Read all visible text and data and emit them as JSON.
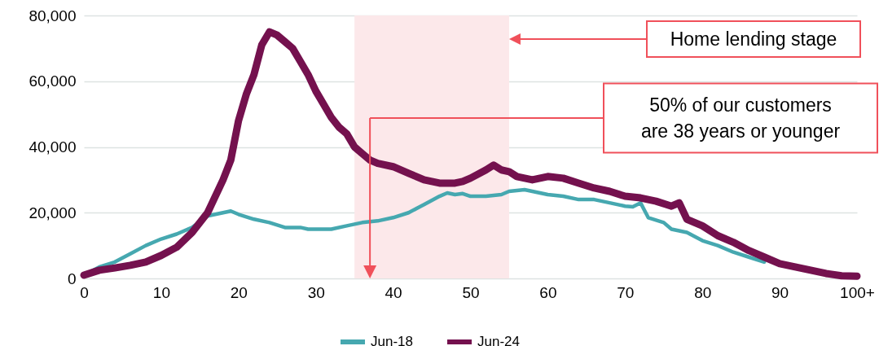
{
  "chart_data": {
    "type": "line",
    "xlim": [
      0,
      100
    ],
    "xticks": [
      0,
      10,
      20,
      30,
      40,
      50,
      60,
      70,
      80,
      90,
      {
        "value": 100,
        "label": "100+"
      }
    ],
    "ylim": [
      0,
      80000
    ],
    "yticks": [
      0,
      {
        "value": 20000,
        "label": "20,000"
      },
      {
        "value": 40000,
        "label": "40,000"
      },
      {
        "value": 60000,
        "label": "60,000"
      },
      {
        "value": 80000,
        "label": "80,000"
      }
    ],
    "grid": "y",
    "legend": "bottom",
    "line_style": "solid",
    "marker": "none",
    "series": [
      {
        "name": "Jun-18",
        "color": "#46a8b0",
        "x": [
          0,
          2,
          4,
          6,
          8,
          10,
          12,
          14,
          16,
          18,
          19,
          20,
          22,
          24,
          26,
          28,
          29,
          32,
          34,
          36,
          38,
          40,
          42,
          44,
          46,
          47,
          48,
          49,
          50,
          52,
          54,
          55,
          57,
          58,
          60,
          62,
          64,
          66,
          68,
          70,
          71,
          72,
          73,
          75,
          76,
          78,
          80,
          82,
          84,
          86,
          88
        ],
        "values": [
          1000,
          3500,
          5000,
          7500,
          10000,
          12000,
          13500,
          15500,
          19000,
          20000,
          20500,
          19500,
          18000,
          17000,
          15500,
          15500,
          15000,
          15000,
          16000,
          17000,
          17500,
          18500,
          20000,
          22500,
          25000,
          26000,
          25500,
          25800,
          25000,
          25000,
          25500,
          26500,
          27000,
          26500,
          25500,
          25000,
          24000,
          24000,
          23000,
          22000,
          21800,
          23000,
          18500,
          17000,
          15000,
          14000,
          11500,
          10000,
          8000,
          6500,
          5000
        ]
      },
      {
        "name": "Jun-24",
        "color": "#74114e",
        "x": [
          0,
          2,
          4,
          6,
          8,
          10,
          12,
          14,
          16,
          18,
          19,
          20,
          21,
          22,
          23,
          24,
          25,
          26,
          27,
          28,
          29,
          30,
          31,
          32,
          33,
          34,
          35,
          36,
          37,
          38,
          40,
          42,
          44,
          46,
          48,
          49,
          50,
          52,
          53,
          54,
          55,
          56,
          58,
          60,
          62,
          64,
          66,
          68,
          70,
          72,
          74,
          76,
          77,
          78,
          80,
          82,
          84,
          86,
          88,
          90,
          92,
          94,
          96,
          98,
          100
        ],
        "values": [
          1000,
          2500,
          3200,
          4000,
          5000,
          7000,
          9500,
          14000,
          20000,
          30000,
          36000,
          48000,
          56000,
          62000,
          71000,
          75000,
          74000,
          72000,
          70000,
          66000,
          62000,
          57000,
          53000,
          49000,
          46000,
          44000,
          40000,
          38000,
          36000,
          35000,
          34000,
          32000,
          30000,
          29000,
          29000,
          29500,
          30500,
          33000,
          34500,
          33000,
          32500,
          31000,
          30000,
          31000,
          30500,
          29000,
          27500,
          26500,
          25000,
          24500,
          23500,
          22000,
          23000,
          18000,
          16000,
          13000,
          11000,
          8500,
          6500,
          4500,
          3500,
          2500,
          1500,
          800,
          700
        ]
      }
    ],
    "bands": [
      {
        "axis": "x",
        "from": 35,
        "to": 55,
        "color": "#fce8ea"
      }
    ],
    "ref_lines": [
      {
        "axis": "x",
        "value": 37,
        "color": "#f0505a",
        "line_style": "solid"
      }
    ],
    "annotations": [
      "Home lending stage",
      "50% of our customers\nare 38 years or younger"
    ]
  }
}
